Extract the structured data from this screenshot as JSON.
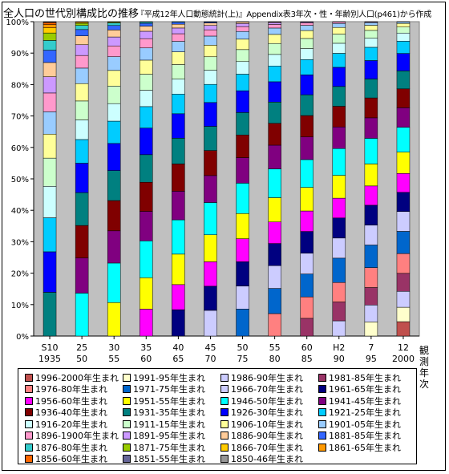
{
  "title": "全人口の世代別構成比の推移",
  "subtitle": "『平成12年人口動態統計(上)』Appendix表3年次・性・年齢別人口(p461)から作成",
  "chart_data": {
    "type": "bar",
    "stacked": true,
    "percent": true,
    "xlabel": "観測年次",
    "ylim": [
      0,
      100
    ],
    "y_ticks": [
      "0%",
      "10%",
      "20%",
      "30%",
      "40%",
      "50%",
      "60%",
      "70%",
      "80%",
      "90%",
      "100%"
    ],
    "grid": false,
    "plot_background": "#c0c0c0",
    "legend_position": "bottom",
    "categories": [
      [
        "S10",
        "1935"
      ],
      [
        "25",
        "50"
      ],
      [
        "30",
        "55"
      ],
      [
        "35",
        "60"
      ],
      [
        "40",
        "65"
      ],
      [
        "45",
        "70"
      ],
      [
        "50",
        "75"
      ],
      [
        "55",
        "80"
      ],
      [
        "60",
        "85"
      ],
      [
        "H2",
        "90"
      ],
      [
        "7",
        "95"
      ],
      [
        "12",
        "2000"
      ]
    ],
    "series": [
      {
        "name": "1996-2000年生まれ",
        "color": "#c0504d",
        "values": [
          0,
          0,
          0,
          0,
          0,
          0,
          0,
          0,
          0,
          0,
          0,
          4.8
        ]
      },
      {
        "name": "1991-95年生まれ",
        "color": "#ffffcc",
        "values": [
          0,
          0,
          0,
          0,
          0,
          0,
          0,
          0,
          0,
          0,
          4.7,
          4.8
        ]
      },
      {
        "name": "1986-90年生まれ",
        "color": "#ccccff",
        "values": [
          0,
          0,
          0,
          0,
          0,
          0,
          0,
          0,
          0,
          5.0,
          5.6,
          5.3
        ]
      },
      {
        "name": "1981-85年生まれ",
        "color": "#993366",
        "values": [
          0,
          0,
          0,
          0,
          0,
          0,
          0,
          0,
          5.8,
          6.2,
          5.8,
          6.0
        ]
      },
      {
        "name": "1976-80年生まれ",
        "color": "#ff8080",
        "values": [
          0,
          0,
          0,
          0,
          0,
          0,
          0,
          7.4,
          7.0,
          6.4,
          6.6,
          6.6
        ]
      },
      {
        "name": "1971-75年生まれ",
        "color": "#0066cc",
        "values": [
          0,
          0,
          0,
          0,
          0,
          0,
          8.8,
          8.3,
          7.5,
          8.0,
          7.5,
          7.4
        ]
      },
      {
        "name": "1966-70年生まれ",
        "color": "#ccccff",
        "values": [
          0,
          0,
          0,
          0,
          0,
          8.2,
          7.5,
          7.5,
          6.8,
          6.6,
          6.6,
          6.6
        ]
      },
      {
        "name": "1961-65年生まれ",
        "color": "#000080",
        "values": [
          0,
          0,
          0,
          0,
          8.3,
          7.7,
          7.9,
          7.3,
          7.1,
          6.6,
          6.6,
          6.4
        ]
      },
      {
        "name": "1956-60年生まれ",
        "color": "#ff00ff",
        "values": [
          0,
          0,
          0,
          8.4,
          7.9,
          7.8,
          7.5,
          7.1,
          6.7,
          6.5,
          6.4,
          6.3
        ]
      },
      {
        "name": "1951-55年生まれ",
        "color": "#ffff00",
        "values": [
          0,
          0,
          10.5,
          9.8,
          9.6,
          8.6,
          8.2,
          8.0,
          7.7,
          7.5,
          7.3,
          7.1
        ]
      },
      {
        "name": "1946-50年生まれ",
        "color": "#00ffff",
        "values": [
          0,
          13.6,
          12.4,
          11.5,
          10.8,
          10.3,
          9.9,
          9.5,
          9.1,
          8.8,
          8.5,
          8.3
        ]
      },
      {
        "name": "1941-45年生まれ",
        "color": "#800080",
        "values": [
          0,
          11.1,
          10.1,
          9.2,
          9.0,
          8.6,
          8.3,
          7.8,
          7.4,
          7.1,
          6.8,
          6.5
        ]
      },
      {
        "name": "1936-40年生まれ",
        "color": "#800000",
        "values": [
          0,
          10.3,
          9.5,
          9.1,
          8.6,
          8.0,
          7.4,
          7.2,
          7.0,
          6.8,
          6.6,
          6.3
        ]
      },
      {
        "name": "1931-35年生まれ",
        "color": "#008080",
        "values": [
          13.5,
          10.4,
          9.4,
          8.6,
          8.1,
          7.7,
          7.3,
          7.0,
          6.8,
          6.5,
          6.3,
          6.0
        ]
      },
      {
        "name": "1926-30年生まれ",
        "color": "#0000ff",
        "values": [
          12.5,
          9.3,
          8.5,
          8.3,
          7.7,
          7.6,
          7.1,
          6.7,
          6.5,
          6.3,
          6.1,
          5.8
        ]
      },
      {
        "name": "1921-25年生まれ",
        "color": "#00ccff",
        "values": [
          10.5,
          7.5,
          7.0,
          6.7,
          6.2,
          5.8,
          5.4,
          5.2,
          5.0,
          4.6,
          4.4,
          4.1
        ]
      },
      {
        "name": "1916-20年生まれ",
        "color": "#ccffff",
        "values": [
          9.7,
          6.2,
          5.5,
          5.1,
          4.7,
          4.5,
          4.1,
          3.8,
          3.6,
          3.3,
          3.0,
          2.7
        ]
      },
      {
        "name": "1911-15年生まれ",
        "color": "#ccffcc",
        "values": [
          8.7,
          6.0,
          5.5,
          5.0,
          4.6,
          4.3,
          3.9,
          3.6,
          3.3,
          3.0,
          2.6,
          2.0
        ]
      },
      {
        "name": "1906-10年生まれ",
        "color": "#ffff99",
        "values": [
          7.4,
          5.5,
          4.9,
          4.4,
          4.0,
          3.7,
          3.4,
          3.0,
          2.6,
          2.2,
          1.7,
          1.2
        ]
      },
      {
        "name": "1901-05年生まれ",
        "color": "#99ccff",
        "values": [
          6.9,
          4.9,
          4.3,
          3.8,
          3.3,
          2.9,
          2.5,
          2.1,
          1.7,
          1.3,
          0.9,
          0.5
        ]
      },
      {
        "name": "1896-1900年生まれ",
        "color": "#ff99cc",
        "values": [
          5.8,
          4.0,
          3.4,
          2.9,
          2.4,
          2.0,
          1.6,
          1.2,
          0.8,
          0.5,
          0.2,
          0.1
        ]
      },
      {
        "name": "1891-95年生まれ",
        "color": "#cc99ff",
        "values": [
          5.0,
          3.4,
          2.8,
          2.3,
          1.8,
          1.4,
          1.0,
          0.6,
          0.3,
          0.1,
          0.1,
          0.0
        ]
      },
      {
        "name": "1886-90年生まれ",
        "color": "#ffcc99",
        "values": [
          4.4,
          2.8,
          2.2,
          1.6,
          1.2,
          0.8,
          0.5,
          0.2,
          0.1,
          0,
          0,
          0
        ]
      },
      {
        "name": "1881-85年生まれ",
        "color": "#3366ff",
        "values": [
          3.8,
          2.0,
          1.4,
          0.9,
          0.6,
          0.3,
          0.1,
          0.1,
          0,
          0,
          0,
          0
        ]
      },
      {
        "name": "1876-80年生まれ",
        "color": "#33cccc",
        "values": [
          3.0,
          1.3,
          0.8,
          0.4,
          0.2,
          0.1,
          0,
          0,
          0,
          0,
          0,
          0
        ]
      },
      {
        "name": "1871-75年生まれ",
        "color": "#99cc00",
        "values": [
          2.3,
          0.7,
          0.3,
          0.1,
          0,
          0,
          0,
          0,
          0,
          0,
          0,
          0
        ]
      },
      {
        "name": "1866-70年生まれ",
        "color": "#ffcc00",
        "values": [
          1.6,
          0.3,
          0.1,
          0,
          0,
          0,
          0,
          0,
          0,
          0,
          0,
          0
        ]
      },
      {
        "name": "1861-65年生まれ",
        "color": "#ff9900",
        "values": [
          1.0,
          0.2,
          0,
          0,
          0,
          0,
          0,
          0,
          0,
          0,
          0,
          0
        ]
      },
      {
        "name": "1856-60年生まれ",
        "color": "#ff6600",
        "values": [
          0.6,
          0,
          0,
          0,
          0,
          0,
          0,
          0,
          0,
          0,
          0,
          0
        ]
      },
      {
        "name": "1851-55年生まれ",
        "color": "#666699",
        "values": [
          0.2,
          0,
          0,
          0,
          0,
          0,
          0,
          0,
          0,
          0,
          0,
          0
        ]
      },
      {
        "name": "1850-46年生まれ",
        "color": "#969696",
        "values": [
          0.1,
          0,
          0,
          0,
          0,
          0,
          0,
          0,
          0,
          0,
          0,
          0
        ]
      }
    ]
  }
}
